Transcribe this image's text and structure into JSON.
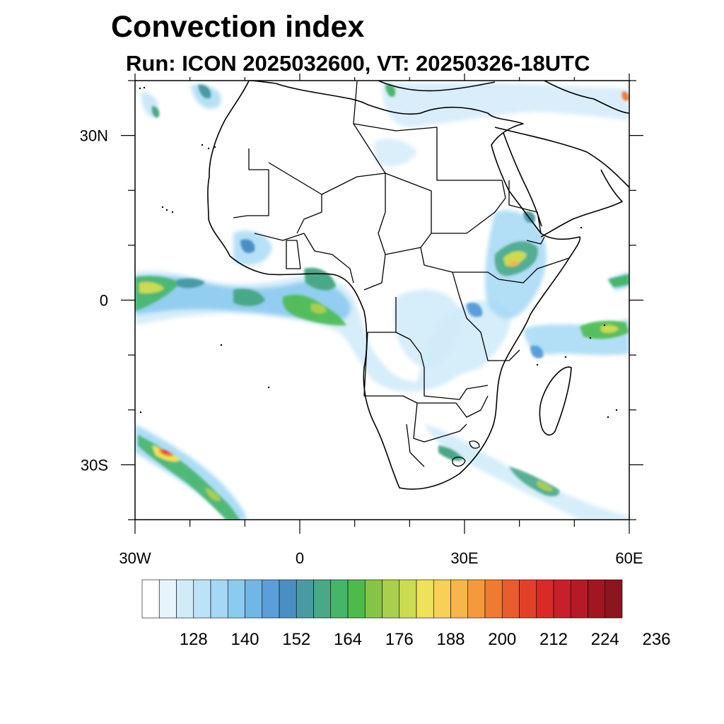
{
  "title": "Convection index",
  "subtitle": "Run: ICON 2025032600,  VT: 20250326-18UTC",
  "map": {
    "region": "Africa",
    "lon_range": [
      -30,
      60
    ],
    "lat_range": [
      -40,
      40
    ],
    "x_ticks": [
      {
        "lon": -30,
        "label": "30W"
      },
      {
        "lon": 0,
        "label": "0"
      },
      {
        "lon": 30,
        "label": "30E"
      },
      {
        "lon": 60,
        "label": "60E"
      }
    ],
    "y_ticks": [
      {
        "lat": 30,
        "label": "30N"
      },
      {
        "lat": 0,
        "label": "0"
      },
      {
        "lat": -30,
        "label": "30S"
      }
    ],
    "minor_lon_step": 10,
    "minor_lat_step": 10
  },
  "colorbar": {
    "colors": [
      "#ffffff",
      "#e8f4fc",
      "#d2ebf9",
      "#bce2f7",
      "#a4d8f5",
      "#8ccbf0",
      "#72b6e6",
      "#5a9fd9",
      "#4a8fc3",
      "#4a9aa4",
      "#48a887",
      "#46b56a",
      "#4cbb4c",
      "#86c447",
      "#a9cf4d",
      "#ccdc50",
      "#efe25a",
      "#f8cf57",
      "#f7b649",
      "#f59a3c",
      "#ef7a31",
      "#e95c2c",
      "#e24128",
      "#d92a28",
      "#c81f2a",
      "#b51a28",
      "#a01722",
      "#8b1620"
    ],
    "labels": [
      "128",
      "140",
      "152",
      "164",
      "176",
      "188",
      "200",
      "212",
      "224",
      "236"
    ]
  }
}
